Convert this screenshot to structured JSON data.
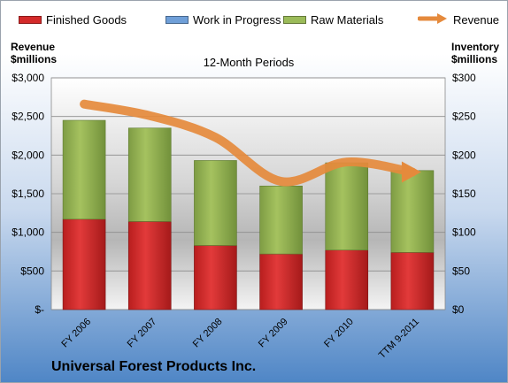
{
  "legend": [
    {
      "label": "Finished Goods",
      "color": "#d42a2a"
    },
    {
      "label": "Work in Progress",
      "color": "#6f9fd8"
    },
    {
      "label": "Raw Materials",
      "color": "#9bbb59"
    },
    {
      "label": "Revenue",
      "color": "#e58a3c"
    }
  ],
  "left_axis_title": "Revenue\n$millions",
  "right_axis_title": "Inventory\n$millions",
  "subtitle": "12-Month Periods",
  "company": "Universal Forest Products Inc.",
  "chart_data": {
    "type": "bar",
    "stacked": true,
    "categories": [
      "FY 2006",
      "FY 2007",
      "FY 2008",
      "FY 2009",
      "FY 2010",
      "TTM 9-2011"
    ],
    "series": [
      {
        "name": "Finished Goods",
        "axis": "right",
        "values": [
          117,
          114,
          83,
          72,
          77,
          74
        ]
      },
      {
        "name": "Work in Progress",
        "axis": "right",
        "values": [
          0,
          0,
          0,
          0,
          0,
          0
        ]
      },
      {
        "name": "Raw Materials",
        "axis": "right",
        "values": [
          128,
          121,
          110,
          88,
          113,
          106
        ]
      },
      {
        "name": "Revenue",
        "axis": "left",
        "type": "line",
        "values": [
          2660,
          2510,
          2230,
          1660,
          1910,
          1780
        ]
      }
    ],
    "left_axis": {
      "ylim": [
        0,
        3000
      ],
      "ticks": [
        "$-",
        "$500",
        "$1,000",
        "$1,500",
        "$2,000",
        "$2,500",
        "$3,000"
      ]
    },
    "right_axis": {
      "ylim": [
        0,
        300
      ],
      "ticks": [
        "$0",
        "$50",
        "$100",
        "$150",
        "$200",
        "$250",
        "$300"
      ]
    },
    "grid": true,
    "legend_position": "top"
  }
}
